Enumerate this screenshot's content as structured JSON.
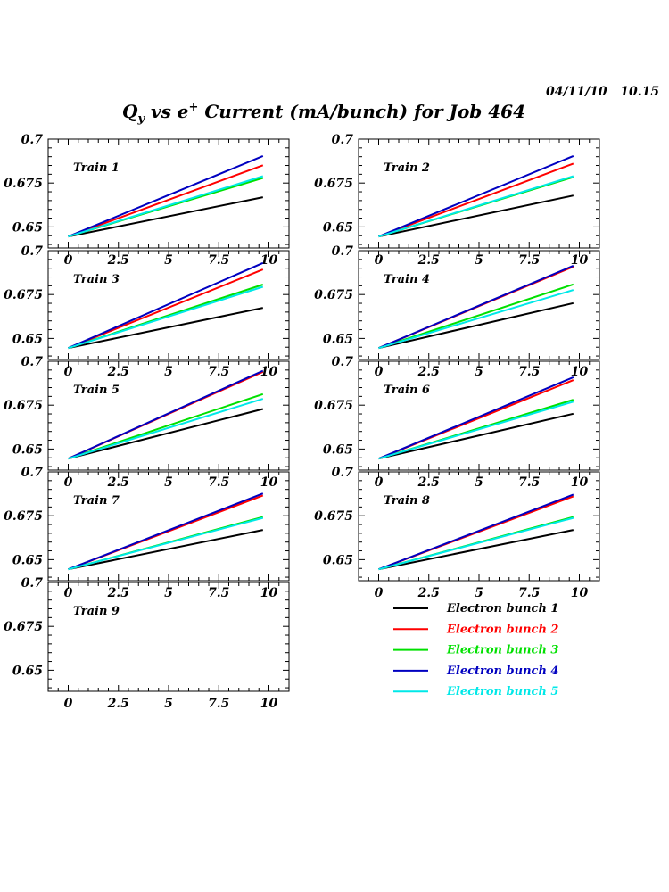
{
  "header": {
    "timestamp": "04/11/10   10.15",
    "title_prefix": "Q",
    "title_sub": "y",
    "title_mid": " vs e",
    "title_sup": "+",
    "title_suffix": " Current (mA/bunch) for Job 464"
  },
  "chart_data": {
    "type": "line",
    "title": "Qy vs e+ Current (mA/bunch) for Job 464",
    "xlabel": "",
    "ylabel": "",
    "xlim": [
      -1,
      11
    ],
    "ylim": [
      0.638,
      0.7
    ],
    "xticks": [
      0,
      2.5,
      5,
      7.5,
      10
    ],
    "xtick_labels": [
      "0",
      "2.5",
      "5",
      "7.5",
      "10"
    ],
    "yticks": [
      0.65,
      0.675,
      0.7
    ],
    "ytick_labels": [
      "0.65",
      "0.675",
      "0.7"
    ],
    "grid": false,
    "legend_position": "bottom-right",
    "series_meta": [
      {
        "name": "Electron bunch 1",
        "color": "#000000"
      },
      {
        "name": "Electron bunch 2",
        "color": "#ff0000"
      },
      {
        "name": "Electron bunch 3",
        "color": "#00e000"
      },
      {
        "name": "Electron bunch 4",
        "color": "#0000c0"
      },
      {
        "name": "Electron bunch 5",
        "color": "#00e8e8"
      }
    ],
    "panels": [
      {
        "label": "Train 1",
        "x": [
          0,
          9.7
        ],
        "series": [
          {
            "name": "Electron bunch 1",
            "values": [
              0.6445,
              0.6669
            ]
          },
          {
            "name": "Electron bunch 2",
            "values": [
              0.6445,
              0.6851
            ]
          },
          {
            "name": "Electron bunch 3",
            "values": [
              0.6445,
              0.6779
            ]
          },
          {
            "name": "Electron bunch 4",
            "values": [
              0.6445,
              0.6904
            ]
          },
          {
            "name": "Electron bunch 5",
            "values": [
              0.6445,
              0.6789
            ]
          }
        ]
      },
      {
        "label": "Train 2",
        "x": [
          0,
          9.7
        ],
        "series": [
          {
            "name": "Electron bunch 1",
            "values": [
              0.6445,
              0.6679
            ]
          },
          {
            "name": "Electron bunch 2",
            "values": [
              0.6445,
              0.6861
            ]
          },
          {
            "name": "Electron bunch 3",
            "values": [
              0.6445,
              0.6784
            ]
          },
          {
            "name": "Electron bunch 4",
            "values": [
              0.6445,
              0.6904
            ]
          },
          {
            "name": "Electron bunch 5",
            "values": [
              0.6445,
              0.6789
            ]
          }
        ]
      },
      {
        "label": "Train 3",
        "x": [
          0,
          9.7
        ],
        "series": [
          {
            "name": "Electron bunch 1",
            "values": [
              0.6445,
              0.6674
            ]
          },
          {
            "name": "Electron bunch 2",
            "values": [
              0.6445,
              0.6893
            ]
          },
          {
            "name": "Electron bunch 3",
            "values": [
              0.6445,
              0.6807
            ]
          },
          {
            "name": "Electron bunch 4",
            "values": [
              0.6445,
              0.693
            ]
          },
          {
            "name": "Electron bunch 5",
            "values": [
              0.6445,
              0.6794
            ]
          }
        ]
      },
      {
        "label": "Train 4",
        "x": [
          0,
          9.7
        ],
        "series": [
          {
            "name": "Electron bunch 1",
            "values": [
              0.6445,
              0.6701
            ]
          },
          {
            "name": "Electron bunch 2",
            "values": [
              0.6445,
              0.6909
            ]
          },
          {
            "name": "Electron bunch 3",
            "values": [
              0.6445,
              0.6808
            ]
          },
          {
            "name": "Electron bunch 4",
            "values": [
              0.6445,
              0.6914
            ]
          },
          {
            "name": "Electron bunch 5",
            "values": [
              0.6445,
              0.6776
            ]
          }
        ]
      },
      {
        "label": "Train 5",
        "x": [
          0,
          9.7
        ],
        "series": [
          {
            "name": "Electron bunch 1",
            "values": [
              0.6445,
              0.6728
            ]
          },
          {
            "name": "Electron bunch 2",
            "values": [
              0.6445,
              0.694
            ]
          },
          {
            "name": "Electron bunch 3",
            "values": [
              0.6445,
              0.6813
            ]
          },
          {
            "name": "Electron bunch 4",
            "values": [
              0.6445,
              0.6946
            ]
          },
          {
            "name": "Electron bunch 5",
            "values": [
              0.6445,
              0.6786
            ]
          }
        ]
      },
      {
        "label": "Train 6",
        "x": [
          0,
          9.7
        ],
        "series": [
          {
            "name": "Electron bunch 1",
            "values": [
              0.6445,
              0.6701
            ]
          },
          {
            "name": "Electron bunch 2",
            "values": [
              0.6445,
              0.6893
            ]
          },
          {
            "name": "Electron bunch 3",
            "values": [
              0.6445,
              0.6781
            ]
          },
          {
            "name": "Electron bunch 4",
            "values": [
              0.6445,
              0.6909
            ]
          },
          {
            "name": "Electron bunch 5",
            "values": [
              0.6445,
              0.677
            ]
          }
        ]
      },
      {
        "label": "Train 7",
        "x": [
          0,
          9.7
        ],
        "series": [
          {
            "name": "Electron bunch 1",
            "values": [
              0.6445,
              0.6669
            ]
          },
          {
            "name": "Electron bunch 2",
            "values": [
              0.6445,
              0.6866
            ]
          },
          {
            "name": "Electron bunch 3",
            "values": [
              0.6445,
              0.6743
            ]
          },
          {
            "name": "Electron bunch 4",
            "values": [
              0.6445,
              0.6877
            ]
          },
          {
            "name": "Electron bunch 5",
            "values": [
              0.6445,
              0.6738
            ]
          }
        ]
      },
      {
        "label": "Train 8",
        "x": [
          0,
          9.7
        ],
        "series": [
          {
            "name": "Electron bunch 1",
            "values": [
              0.6445,
              0.6669
            ]
          },
          {
            "name": "Electron bunch 2",
            "values": [
              0.6445,
              0.6861
            ]
          },
          {
            "name": "Electron bunch 3",
            "values": [
              0.6445,
              0.6743
            ]
          },
          {
            "name": "Electron bunch 4",
            "values": [
              0.6445,
              0.6871
            ]
          },
          {
            "name": "Electron bunch 5",
            "values": [
              0.6445,
              0.6738
            ]
          }
        ]
      },
      {
        "label": "Train 9",
        "x": [],
        "series": []
      }
    ]
  }
}
